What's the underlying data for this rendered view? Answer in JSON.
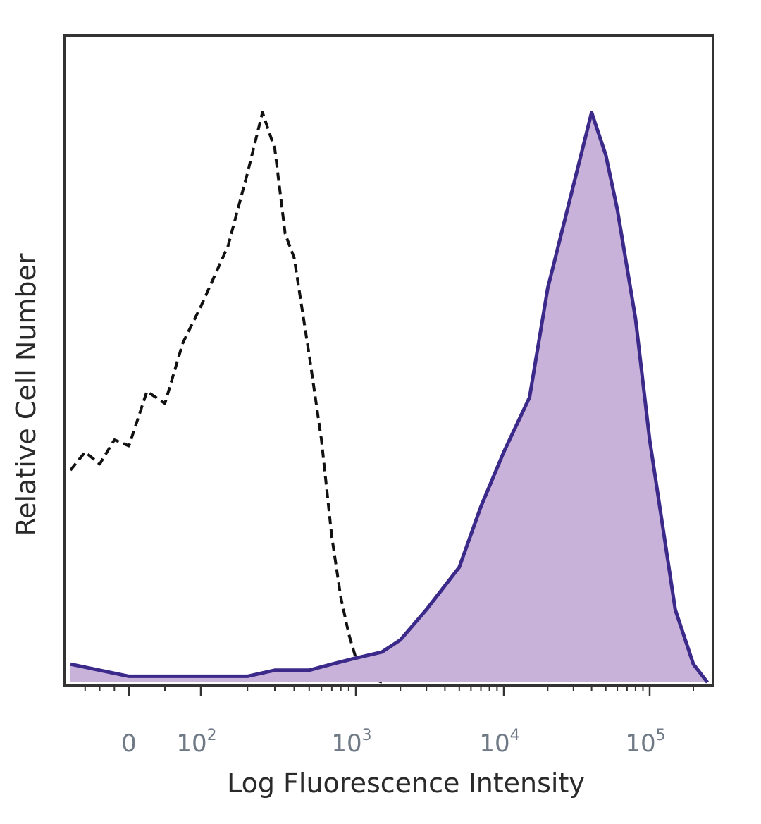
{
  "chart_data": {
    "type": "area",
    "title": "",
    "xlabel": "Log Fluorescence Intensity",
    "ylabel": "Relative Cell Number",
    "x_scale": "biexponential",
    "x_ticks": [
      {
        "value": 0,
        "base": "0",
        "exp": ""
      },
      {
        "value": 100,
        "base": "10",
        "exp": "2"
      },
      {
        "value": 1000,
        "base": "10",
        "exp": "3"
      },
      {
        "value": 10000,
        "base": "10",
        "exp": "4"
      },
      {
        "value": 100000,
        "base": "10",
        "exp": "5"
      }
    ],
    "ylim": [
      0,
      100
    ],
    "grid": false,
    "legend": "none",
    "colors": {
      "filled_line": "#3b2a8a",
      "filled_area": "#c9b2d9",
      "control_line": "#111111",
      "frame": "#333333",
      "tick_text": "#6f7a86"
    },
    "series": [
      {
        "style": "dashed",
        "x": [
          -200,
          -150,
          -100,
          -50,
          0,
          25,
          50,
          75,
          100,
          150,
          200,
          250,
          300,
          350,
          400,
          500,
          600,
          700,
          800,
          900,
          1000,
          1200,
          1500
        ],
        "y": [
          35,
          38,
          36,
          40,
          39,
          48,
          46,
          56,
          62,
          72,
          84,
          94,
          88,
          74,
          70,
          54,
          40,
          24,
          14,
          8,
          4,
          1,
          0
        ]
      },
      {
        "style": "solid-filled",
        "x": [
          -200,
          0,
          100,
          200,
          300,
          500,
          700,
          1000,
          1500,
          2000,
          3000,
          5000,
          7000,
          10000,
          15000,
          20000,
          30000,
          40000,
          50000,
          60000,
          80000,
          100000,
          150000,
          200000,
          250000
        ],
        "y": [
          3,
          1,
          1,
          1,
          2,
          2,
          3,
          4,
          5,
          7,
          12,
          19,
          29,
          38,
          47,
          65,
          82,
          94,
          87,
          78,
          60,
          40,
          12,
          3,
          0
        ]
      }
    ]
  }
}
